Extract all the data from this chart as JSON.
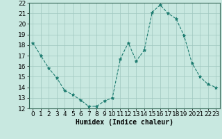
{
  "x": [
    0,
    1,
    2,
    3,
    4,
    5,
    6,
    7,
    8,
    9,
    10,
    11,
    12,
    13,
    14,
    15,
    16,
    17,
    18,
    19,
    20,
    21,
    22,
    23
  ],
  "y": [
    18.2,
    17.0,
    15.8,
    14.9,
    13.7,
    13.3,
    12.8,
    12.2,
    12.2,
    12.7,
    13.0,
    16.7,
    18.2,
    16.5,
    17.5,
    21.1,
    21.8,
    21.0,
    20.5,
    18.9,
    16.3,
    15.0,
    14.3,
    14.0
  ],
  "line_color": "#1a7a6e",
  "marker_color": "#1a7a6e",
  "bg_color": "#c8e8e0",
  "grid_color": "#a0c8c0",
  "xlabel": "Humidex (Indice chaleur)",
  "xlim": [
    -0.5,
    23.5
  ],
  "ylim": [
    12,
    22
  ],
  "yticks": [
    12,
    13,
    14,
    15,
    16,
    17,
    18,
    19,
    20,
    21,
    22
  ],
  "xticks": [
    0,
    1,
    2,
    3,
    4,
    5,
    6,
    7,
    8,
    9,
    10,
    11,
    12,
    13,
    14,
    15,
    16,
    17,
    18,
    19,
    20,
    21,
    22,
    23
  ],
  "xlabel_fontsize": 7,
  "tick_fontsize": 6.5
}
